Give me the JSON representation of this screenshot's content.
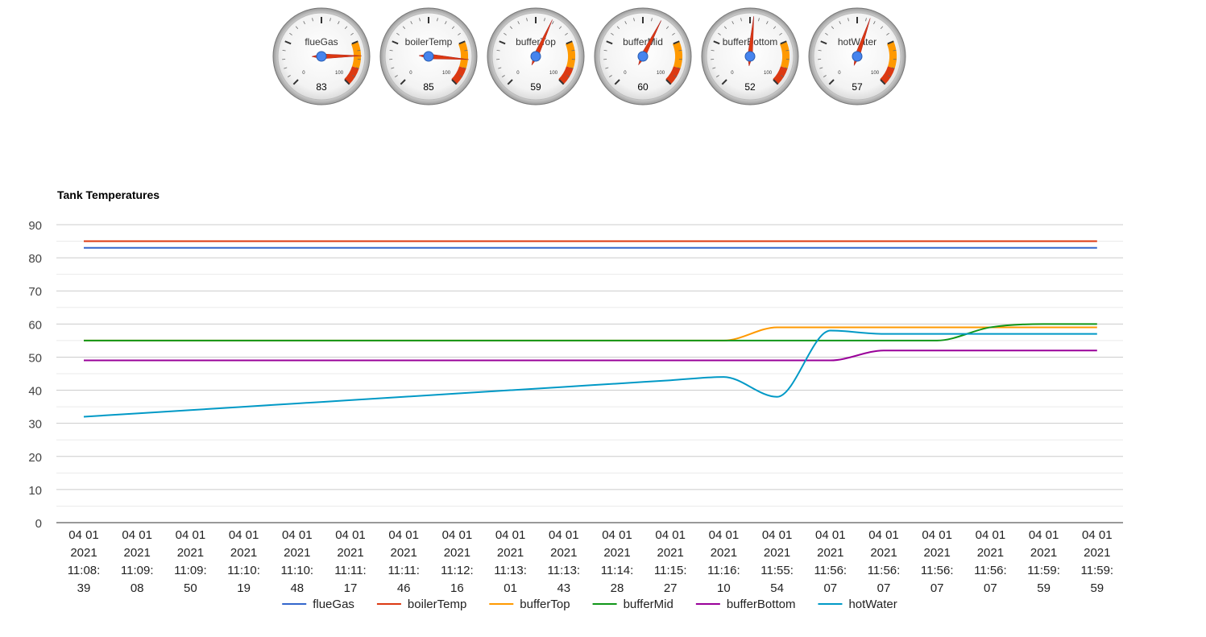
{
  "gauges": [
    {
      "label": "flueGas",
      "value": 83
    },
    {
      "label": "boilerTemp",
      "value": 85
    },
    {
      "label": "bufferTop",
      "value": 59
    },
    {
      "label": "bufferMid",
      "value": 60
    },
    {
      "label": "bufferBottom",
      "value": 52
    },
    {
      "label": "hotWater",
      "value": 57
    }
  ],
  "gauge_scale": {
    "min": 0,
    "max": 100,
    "min_label": "0",
    "max_label": "100",
    "yellow_from": 75,
    "red_from": 90
  },
  "colors": {
    "flueGas": "#3366cc",
    "boilerTemp": "#dc3912",
    "bufferTop": "#ff9900",
    "bufferMid": "#109618",
    "bufferBottom": "#990099",
    "hotWater": "#0099c6",
    "gauge_yellow": "#ff9900",
    "gauge_red": "#dc3912",
    "gauge_needle": "#dc3912",
    "gauge_hub": "#4684ee"
  },
  "chart_data": {
    "type": "line",
    "title": "Tank Temperatures",
    "xlabel": "",
    "ylabel": "",
    "ylim": [
      0,
      90
    ],
    "yticks": [
      "0",
      "10",
      "20",
      "30",
      "40",
      "50",
      "60",
      "70",
      "80",
      "90"
    ],
    "grid": true,
    "legend_position": "bottom",
    "categories": [
      [
        "04 01",
        "2021",
        "11:08:",
        "39"
      ],
      [
        "04 01",
        "2021",
        "11:09:",
        "08"
      ],
      [
        "04 01",
        "2021",
        "11:09:",
        "50"
      ],
      [
        "04 01",
        "2021",
        "11:10:",
        "19"
      ],
      [
        "04 01",
        "2021",
        "11:10:",
        "48"
      ],
      [
        "04 01",
        "2021",
        "11:11:",
        "17"
      ],
      [
        "04 01",
        "2021",
        "11:11:",
        "46"
      ],
      [
        "04 01",
        "2021",
        "11:12:",
        "16"
      ],
      [
        "04 01",
        "2021",
        "11:13:",
        "01"
      ],
      [
        "04 01",
        "2021",
        "11:13:",
        "43"
      ],
      [
        "04 01",
        "2021",
        "11:14:",
        "28"
      ],
      [
        "04 01",
        "2021",
        "11:15:",
        "27"
      ],
      [
        "04 01",
        "2021",
        "11:16:",
        "10"
      ],
      [
        "04 01",
        "2021",
        "11:55:",
        "54"
      ],
      [
        "04 01",
        "2021",
        "11:56:",
        "07"
      ],
      [
        "04 01",
        "2021",
        "11:56:",
        "07"
      ],
      [
        "04 01",
        "2021",
        "11:56:",
        "07"
      ],
      [
        "04 01",
        "2021",
        "11:56:",
        "07"
      ],
      [
        "04 01",
        "2021",
        "11:59:",
        "59"
      ],
      [
        "04 01",
        "2021",
        "11:59:",
        "59"
      ]
    ],
    "series": [
      {
        "name": "flueGas",
        "values": [
          83,
          83,
          83,
          83,
          83,
          83,
          83,
          83,
          83,
          83,
          83,
          83,
          83,
          83,
          83,
          83,
          83,
          83,
          83,
          83
        ]
      },
      {
        "name": "boilerTemp",
        "values": [
          85,
          85,
          85,
          85,
          85,
          85,
          85,
          85,
          85,
          85,
          85,
          85,
          85,
          85,
          85,
          85,
          85,
          85,
          85,
          85
        ]
      },
      {
        "name": "bufferTop",
        "values": [
          55,
          55,
          55,
          55,
          55,
          55,
          55,
          55,
          55,
          55,
          55,
          55,
          55,
          59,
          59,
          59,
          59,
          59,
          59,
          59
        ]
      },
      {
        "name": "bufferMid",
        "values": [
          55,
          55,
          55,
          55,
          55,
          55,
          55,
          55,
          55,
          55,
          55,
          55,
          55,
          55,
          55,
          55,
          55,
          59,
          60,
          60
        ]
      },
      {
        "name": "bufferBottom",
        "values": [
          49,
          49,
          49,
          49,
          49,
          49,
          49,
          49,
          49,
          49,
          49,
          49,
          49,
          49,
          49,
          52,
          52,
          52,
          52,
          52
        ]
      },
      {
        "name": "hotWater",
        "values": [
          32,
          33,
          34,
          35,
          36,
          37,
          38,
          39,
          40,
          41,
          42,
          43,
          44,
          38,
          58,
          57,
          57,
          57,
          57,
          57
        ]
      }
    ]
  }
}
